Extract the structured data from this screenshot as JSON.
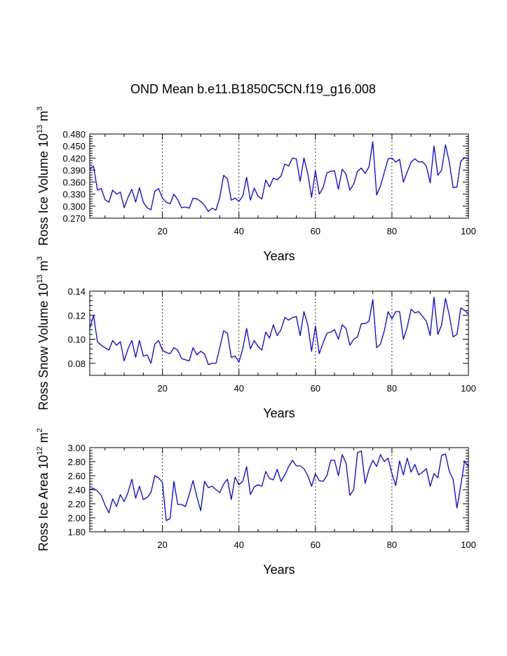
{
  "title": "OND Mean b.e11.B1850C5CN.f19_g16.008",
  "line_color": "#0000ff",
  "chart_data": [
    {
      "type": "line",
      "ylabel_prefix": "Ross Ice Volume 10",
      "ylabel_exp": "13",
      "ylabel_unit": " m",
      "ylabel_unit_exp": "3",
      "xlabel": "Years",
      "xlim": [
        1,
        100
      ],
      "ylim": [
        0.27,
        0.48
      ],
      "xticks": [
        20,
        40,
        60,
        80,
        100
      ],
      "xtick_labels": [
        "20",
        "40",
        "60",
        "80",
        "100"
      ],
      "yticks": [
        0.27,
        0.3,
        0.33,
        0.36,
        0.39,
        0.42,
        0.45,
        0.48
      ],
      "ytick_labels": [
        "0.270",
        "0.300",
        "0.330",
        "0.360",
        "0.390",
        "0.420",
        "0.450",
        "0.480"
      ],
      "grid_x": [
        20,
        40,
        60,
        80
      ],
      "series": [
        {
          "name": "Ross Ice Volume",
          "values": [
            0.392,
            0.4,
            0.34,
            0.344,
            0.316,
            0.31,
            0.34,
            0.33,
            0.335,
            0.296,
            0.322,
            0.342,
            0.31,
            0.346,
            0.31,
            0.296,
            0.291,
            0.337,
            0.344,
            0.32,
            0.31,
            0.306,
            0.33,
            0.316,
            0.296,
            0.298,
            0.295,
            0.32,
            0.318,
            0.312,
            0.302,
            0.287,
            0.295,
            0.29,
            0.322,
            0.377,
            0.368,
            0.315,
            0.32,
            0.312,
            0.325,
            0.372,
            0.315,
            0.345,
            0.325,
            0.318,
            0.365,
            0.348,
            0.37,
            0.366,
            0.375,
            0.405,
            0.4,
            0.42,
            0.418,
            0.362,
            0.42,
            0.381,
            0.322,
            0.388,
            0.33,
            0.346,
            0.383,
            0.387,
            0.388,
            0.342,
            0.392,
            0.38,
            0.34,
            0.355,
            0.387,
            0.395,
            0.382,
            0.398,
            0.461,
            0.328,
            0.35,
            0.384,
            0.418,
            0.42,
            0.41,
            0.417,
            0.36,
            0.385,
            0.41,
            0.418,
            0.41,
            0.411,
            0.4,
            0.358,
            0.45,
            0.377,
            0.39,
            0.453,
            0.41,
            0.346,
            0.348,
            0.412,
            0.421,
            0.418
          ]
        }
      ]
    },
    {
      "type": "line",
      "ylabel_prefix": "Ross Snow Volume 10",
      "ylabel_exp": "13",
      "ylabel_unit": " m",
      "ylabel_unit_exp": "3",
      "xlabel": "Years",
      "xlim": [
        1,
        100
      ],
      "ylim": [
        0.07,
        0.14
      ],
      "xticks": [
        20,
        40,
        60,
        80,
        100
      ],
      "xtick_labels": [
        "20",
        "40",
        "60",
        "80",
        "100"
      ],
      "yticks": [
        0.08,
        0.1,
        0.12,
        0.14
      ],
      "ytick_labels": [
        "0.08",
        "0.10",
        "0.12",
        "0.14"
      ],
      "grid_x": [
        20,
        40,
        60,
        80
      ],
      "series": [
        {
          "name": "Ross Snow Volume",
          "values": [
            0.109,
            0.12,
            0.098,
            0.095,
            0.093,
            0.091,
            0.099,
            0.095,
            0.098,
            0.082,
            0.092,
            0.099,
            0.085,
            0.099,
            0.086,
            0.087,
            0.08,
            0.096,
            0.099,
            0.091,
            0.089,
            0.088,
            0.093,
            0.091,
            0.084,
            0.083,
            0.082,
            0.093,
            0.087,
            0.09,
            0.088,
            0.079,
            0.08,
            0.08,
            0.093,
            0.107,
            0.105,
            0.085,
            0.086,
            0.081,
            0.092,
            0.109,
            0.092,
            0.099,
            0.094,
            0.091,
            0.106,
            0.101,
            0.112,
            0.103,
            0.108,
            0.118,
            0.116,
            0.118,
            0.119,
            0.103,
            0.123,
            0.112,
            0.09,
            0.111,
            0.088,
            0.097,
            0.105,
            0.106,
            0.108,
            0.1,
            0.112,
            0.109,
            0.095,
            0.1,
            0.102,
            0.113,
            0.113,
            0.115,
            0.133,
            0.093,
            0.096,
            0.107,
            0.123,
            0.117,
            0.123,
            0.123,
            0.1,
            0.11,
            0.125,
            0.122,
            0.123,
            0.119,
            0.115,
            0.103,
            0.135,
            0.104,
            0.112,
            0.134,
            0.12,
            0.102,
            0.104,
            0.126,
            0.124,
            0.121
          ]
        }
      ]
    },
    {
      "type": "line",
      "ylabel_prefix": "Ross Ice Area 10",
      "ylabel_exp": "12",
      "ylabel_unit": " m",
      "ylabel_unit_exp": "2",
      "xlabel": "Years",
      "xlim": [
        1,
        100
      ],
      "ylim": [
        1.8,
        3.0
      ],
      "xticks": [
        20,
        40,
        60,
        80,
        100
      ],
      "xtick_labels": [
        "20",
        "40",
        "60",
        "80",
        "100"
      ],
      "yticks": [
        1.8,
        2.0,
        2.2,
        2.4,
        2.6,
        2.8,
        3.0
      ],
      "ytick_labels": [
        "1.80",
        "2.00",
        "2.20",
        "2.40",
        "2.60",
        "2.80",
        "3.00"
      ],
      "grid_x": [
        20,
        40,
        60,
        80
      ],
      "series": [
        {
          "name": "Ross Ice Area",
          "values": [
            2.4,
            2.42,
            2.38,
            2.32,
            2.18,
            2.07,
            2.27,
            2.16,
            2.33,
            2.23,
            2.36,
            2.55,
            2.28,
            2.45,
            2.26,
            2.29,
            2.36,
            2.6,
            2.57,
            2.5,
            1.96,
            1.99,
            2.52,
            2.19,
            2.19,
            2.16,
            2.33,
            2.53,
            2.3,
            2.1,
            2.52,
            2.43,
            2.45,
            2.4,
            2.36,
            2.48,
            2.55,
            2.26,
            2.58,
            2.47,
            2.52,
            2.73,
            2.33,
            2.44,
            2.47,
            2.45,
            2.66,
            2.56,
            2.54,
            2.69,
            2.52,
            2.61,
            2.73,
            2.82,
            2.74,
            2.74,
            2.7,
            2.6,
            2.45,
            2.63,
            2.53,
            2.52,
            2.6,
            2.82,
            2.82,
            2.6,
            2.9,
            2.78,
            2.32,
            2.4,
            2.93,
            2.95,
            2.49,
            2.69,
            2.82,
            2.73,
            2.9,
            2.8,
            2.85,
            2.63,
            2.46,
            2.81,
            2.61,
            2.85,
            2.65,
            2.76,
            2.61,
            2.65,
            2.7,
            2.45,
            2.63,
            2.57,
            2.89,
            2.91,
            2.66,
            2.55,
            2.14,
            2.46,
            2.81,
            2.73
          ]
        }
      ]
    }
  ]
}
